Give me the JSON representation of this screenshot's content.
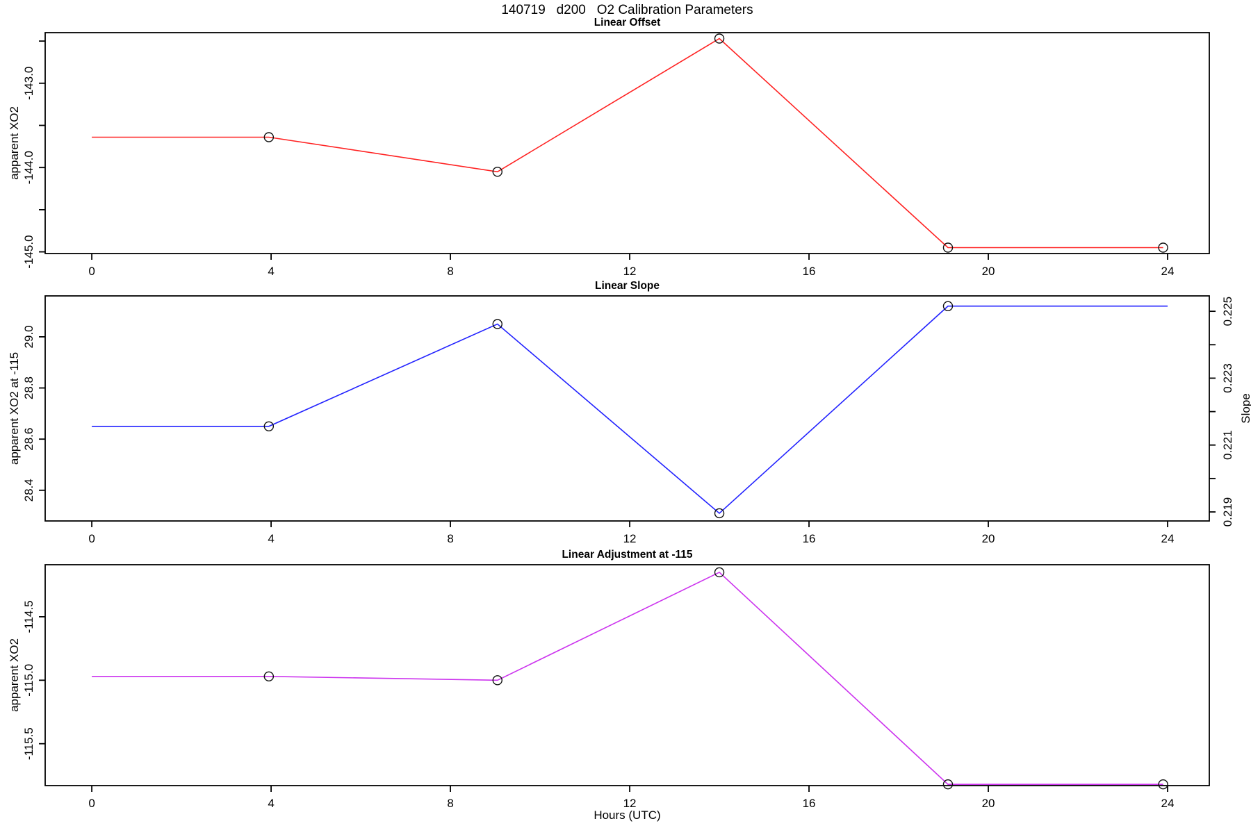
{
  "title": "140719   d200   O2 Calibration Parameters",
  "xlabel": "Hours (UTC)",
  "colors": {
    "offset_line": "#FF2222",
    "slope_line": "#2222FF",
    "adjustment_line": "#CC33EE",
    "marker_stroke": "#111111",
    "axis": "#000000"
  },
  "x_ticks": {
    "values": [
      0,
      4,
      8,
      12,
      16,
      20,
      24
    ],
    "labels": [
      "0",
      "4",
      "8",
      "12",
      "16",
      "20",
      "24"
    ]
  },
  "chart_data": [
    {
      "type": "line",
      "title": "Linear Offset",
      "ylabel": "apparent XO2",
      "color_key": "offset_line",
      "x": [
        0,
        3.95,
        9.05,
        14.0,
        19.1,
        23.9
      ],
      "y": [
        -143.64,
        -143.64,
        -144.05,
        -142.47,
        -144.95,
        -144.95
      ],
      "marker": "open-circle",
      "marker_indices": [
        1,
        2,
        3,
        4,
        5
      ],
      "xlim": [
        0,
        24
      ],
      "ylim": [
        -145.02,
        -142.4
      ],
      "yticks": {
        "values": [
          -145.0,
          -144.5,
          -144.0,
          -143.5,
          -143.0,
          -142.5
        ],
        "labels": [
          "-145.0",
          "",
          "-144.0",
          "",
          "-143.0",
          ""
        ]
      },
      "grid": false,
      "legend": "none"
    },
    {
      "type": "line",
      "title": "Linear Slope",
      "ylabel": "apparent XO2 at -115",
      "ylabel_right": "Slope",
      "color_key": "slope_line",
      "x": [
        0,
        3.95,
        9.05,
        14.0,
        19.1,
        24.0
      ],
      "y": [
        28.65,
        28.65,
        29.05,
        28.31,
        29.12,
        29.12
      ],
      "y_right_equivalent": [
        0.2216,
        0.2216,
        0.2246,
        0.219,
        0.2252,
        0.2252
      ],
      "marker": "open-circle",
      "marker_indices": [
        1,
        2,
        3,
        4
      ],
      "xlim": [
        0,
        24
      ],
      "ylim": [
        28.28,
        29.16
      ],
      "yticks": {
        "values": [
          28.4,
          28.6,
          28.8,
          29.0
        ],
        "labels": [
          "28.4",
          "28.6",
          "28.8",
          "29.0"
        ]
      },
      "y2lim": [
        0.21873,
        0.22546
      ],
      "y2ticks": {
        "values": [
          0.219,
          0.22,
          0.221,
          0.222,
          0.223,
          0.224,
          0.225
        ],
        "labels": [
          "0.219",
          "",
          "0.221",
          "",
          "0.223",
          "",
          "0.225"
        ]
      },
      "grid": false,
      "legend": "none"
    },
    {
      "type": "line",
      "title": "Linear Adjustment at -115",
      "ylabel": "apparent XO2",
      "color_key": "adjustment_line",
      "x": [
        0,
        3.95,
        9.05,
        14.0,
        19.1,
        23.9
      ],
      "y": [
        -114.97,
        -114.97,
        -115.0,
        -114.15,
        -115.82,
        -115.82
      ],
      "marker": "open-circle",
      "marker_indices": [
        1,
        2,
        3,
        4,
        5
      ],
      "xlim": [
        0,
        24
      ],
      "ylim": [
        -115.83,
        -114.09
      ],
      "yticks": {
        "values": [
          -115.5,
          -115.0,
          -114.5
        ],
        "labels": [
          "-115.5",
          "-115.0",
          "-114.5"
        ]
      },
      "grid": false,
      "legend": "none"
    }
  ]
}
